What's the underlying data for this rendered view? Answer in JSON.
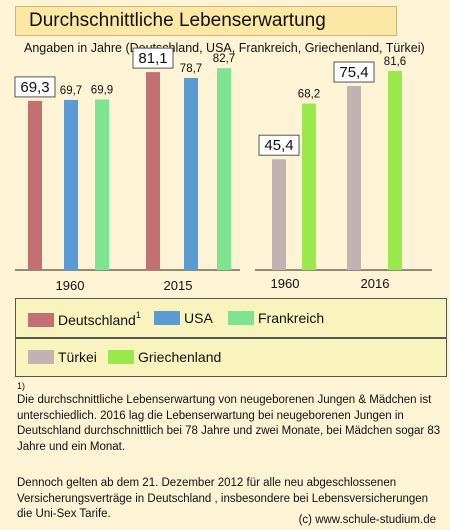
{
  "title": "Durchschnittliche Lebenserwartung",
  "subtitle": "Angaben in Jahre  (Deutschland, USA, Frankreich, Griechenland, Türkei)",
  "colors": {
    "Deutschland": "#c27072",
    "USA": "#5b9bd5",
    "Frankreich": "#7ee491",
    "Türkei": "#c2b3b1",
    "Griechenland": "#9be84c"
  },
  "chart_data": [
    {
      "type": "bar",
      "categories": [
        "1960",
        "2015"
      ],
      "series": [
        {
          "name": "Deutschland",
          "values": [
            69.3,
            81.1
          ],
          "labels": [
            "69,3",
            "81,1"
          ]
        },
        {
          "name": "USA",
          "values": [
            69.7,
            78.7
          ],
          "labels": [
            "69,7",
            "78,7"
          ]
        },
        {
          "name": "Frankreich",
          "values": [
            69.9,
            82.7
          ],
          "labels": [
            "69,9",
            "82,7"
          ]
        }
      ],
      "boxed_labels": [
        "Deutschland"
      ]
    },
    {
      "type": "bar",
      "categories": [
        "1960",
        "2016"
      ],
      "series": [
        {
          "name": "Türkei",
          "values": [
            45.4,
            75.4
          ],
          "labels": [
            "45,4",
            "75,4"
          ]
        },
        {
          "name": "Griechenland",
          "values": [
            68.2,
            81.6
          ],
          "labels": [
            "68,2",
            "81,6"
          ]
        }
      ],
      "boxed_labels": [
        "Türkei"
      ]
    }
  ],
  "legend": {
    "row1": [
      {
        "name": "Deutschland",
        "sup": "1"
      },
      {
        "name": "USA",
        "sup": ""
      },
      {
        "name": "Frankreich",
        "sup": ""
      }
    ],
    "row2": [
      {
        "name": "Türkei",
        "sup": ""
      },
      {
        "name": "Griechenland",
        "sup": ""
      }
    ]
  },
  "footnote_mark": "1)",
  "footnote": "Die durchschnittliche Lebenserwartung von neugeborenen Jungen & Mädchen ist  unterschiedlich.  2016 lag die Lebenserwartung bei neugeborenen Jungen in Deutschland durchschnittlich bei 78  Jahre und zwei Monate, bei Mädchen sogar 83 Jahre und ein Monat.",
  "note": "Dennoch gelten ab dem 21. Dezember 2012 für alle neu abgeschlossenen Versicherungsverträge in Deutschland , insbesondere  bei Lebensversicherungen die Uni-Sex Tarife.",
  "copyright": "(c) www.schule-studium.de"
}
